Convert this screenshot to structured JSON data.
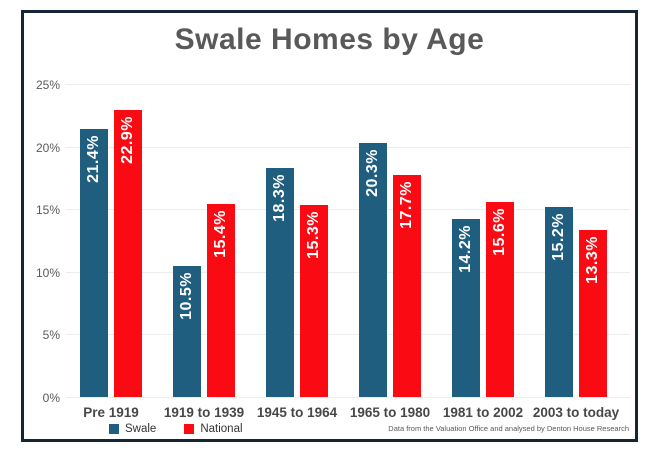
{
  "title": "Swale Homes by Age",
  "footer_note": "Data from the Valuation Office and analysed by Denton House Research",
  "colors": {
    "swale_blue": "#1f5e7e",
    "national_red": "#fa0a13",
    "frame_border": "#152637",
    "gridline": "#ededed",
    "title_text": "#595959",
    "axis_text": "#595959",
    "category_text": "#474747",
    "value_label_text": "#ffffff"
  },
  "chart_data": {
    "type": "bar",
    "title": "Swale Homes by Age",
    "categories": [
      "Pre 1919",
      "1919 to 1939",
      "1945 to 1964",
      "1965 to 1980",
      "1981 to 2002",
      "2003 to today"
    ],
    "series": [
      {
        "name": "Swale",
        "color": "#1f5e7e",
        "values": [
          21.4,
          10.5,
          18.3,
          20.3,
          14.2,
          15.2
        ]
      },
      {
        "name": "National",
        "color": "#fa0a13",
        "values": [
          22.9,
          15.4,
          15.3,
          17.7,
          15.6,
          13.3
        ]
      }
    ],
    "value_label_suffix": "%",
    "y_ticks": [
      "0%",
      "5%",
      "10%",
      "15%",
      "20%",
      "25%"
    ],
    "ylim": [
      0,
      25
    ],
    "grid": true,
    "legend_position": "bottom-left",
    "legend_entries": [
      "Swale",
      "National"
    ],
    "annotation": "Data from the Valuation Office and analysed by Denton House Research"
  }
}
